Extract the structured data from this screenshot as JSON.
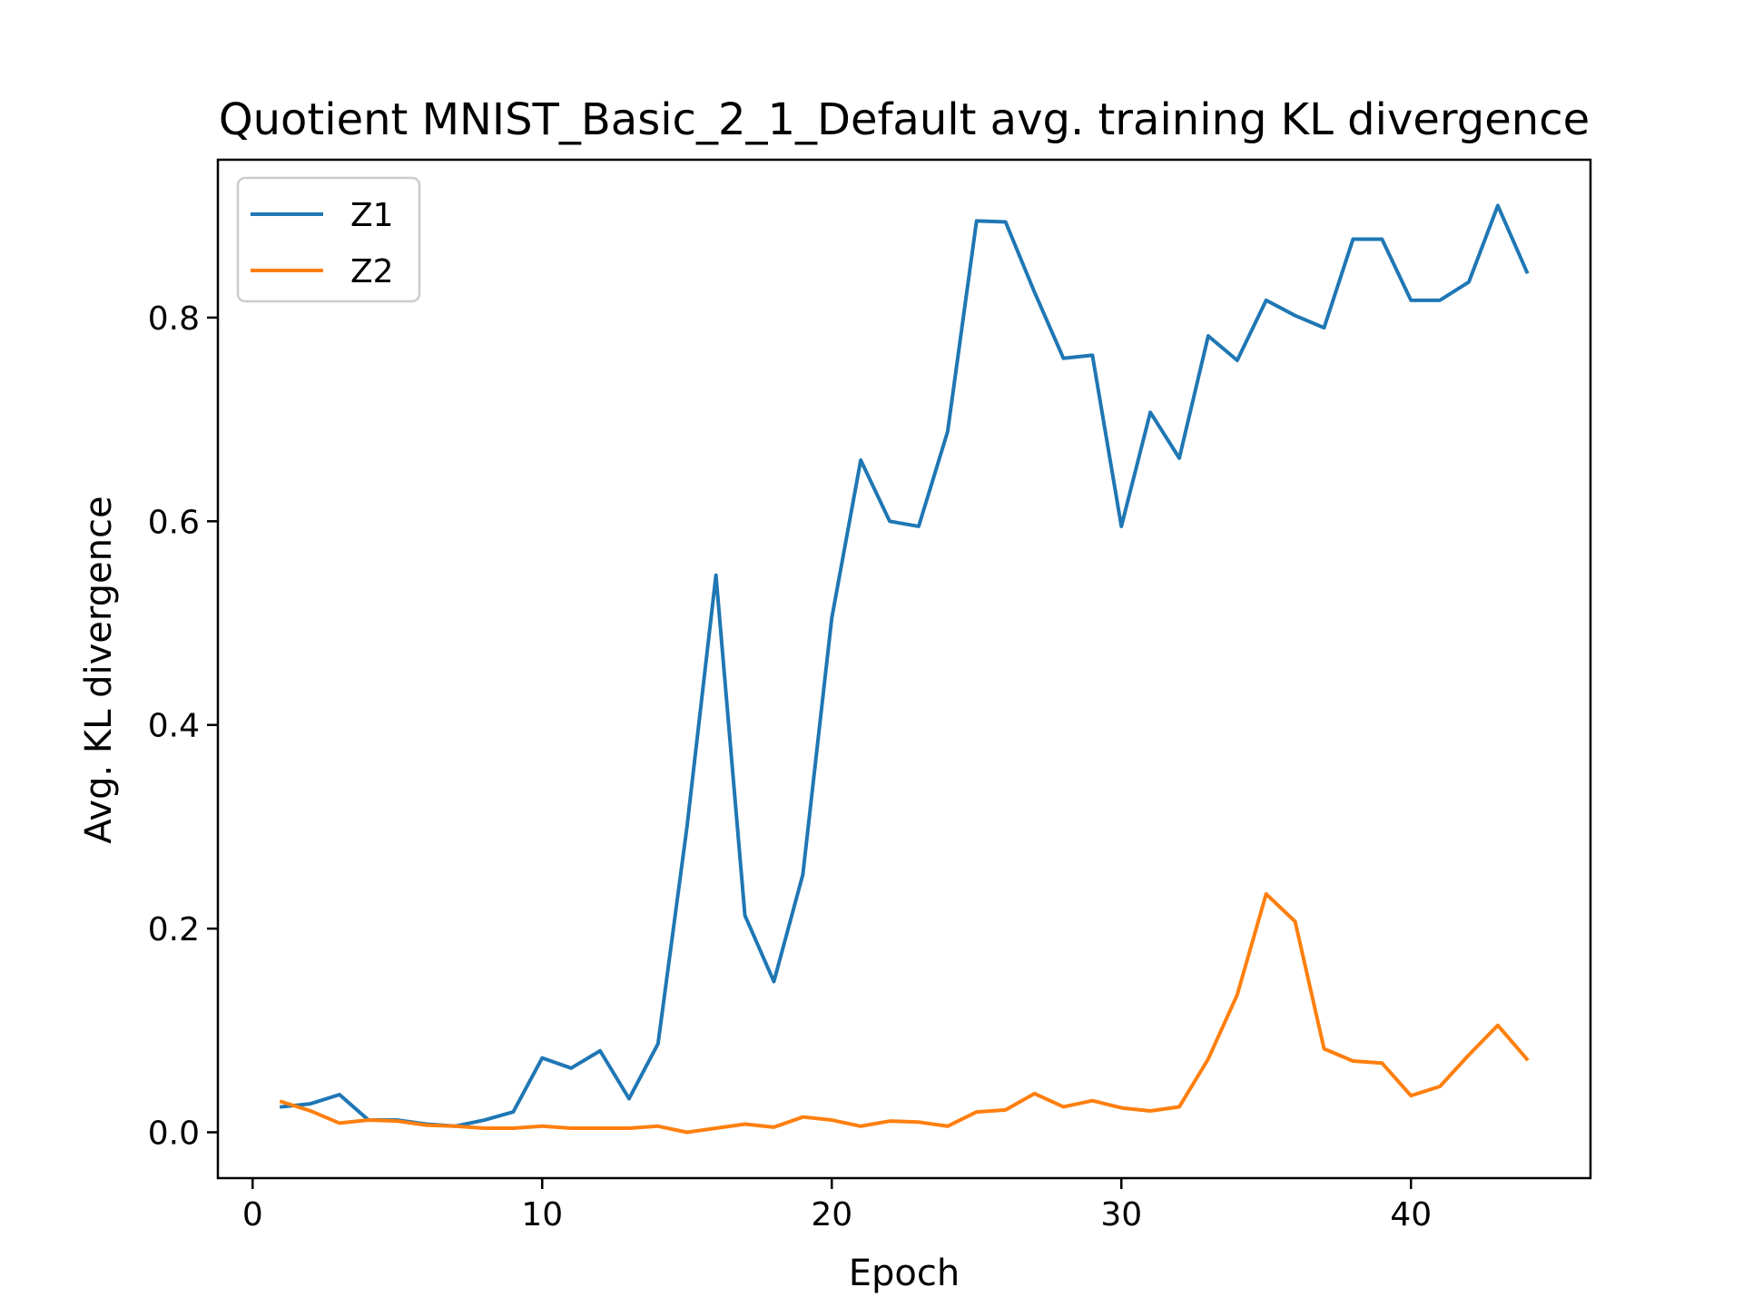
{
  "chart_data": {
    "type": "line",
    "title": "Quotient MNIST_Basic_2_1_Default avg. training KL divergence",
    "xlabel": "Epoch",
    "ylabel": "Avg. KL divergence",
    "xlim": [
      -1.2,
      46.2
    ],
    "ylim": [
      -0.045,
      0.955
    ],
    "xticks": [
      0,
      10,
      20,
      30,
      40
    ],
    "xtick_labels": [
      "0",
      "10",
      "20",
      "30",
      "40"
    ],
    "yticks": [
      0.0,
      0.2,
      0.4,
      0.6,
      0.8
    ],
    "ytick_labels": [
      "0.0",
      "0.2",
      "0.4",
      "0.6",
      "0.8"
    ],
    "grid": false,
    "legend_position": "top-left",
    "x": [
      1,
      2,
      3,
      4,
      5,
      6,
      7,
      8,
      9,
      10,
      11,
      12,
      13,
      14,
      15,
      16,
      17,
      18,
      19,
      20,
      21,
      22,
      23,
      24,
      25,
      26,
      27,
      28,
      29,
      30,
      31,
      32,
      33,
      34,
      35,
      36,
      37,
      38,
      39,
      40,
      41,
      42,
      43,
      44
    ],
    "series": [
      {
        "name": "Z1",
        "color": "#1f77b4",
        "values": [
          0.025,
          0.028,
          0.037,
          0.012,
          0.012,
          0.008,
          0.006,
          0.012,
          0.02,
          0.073,
          0.063,
          0.08,
          0.033,
          0.087,
          0.3,
          0.547,
          0.213,
          0.148,
          0.253,
          0.505,
          0.66,
          0.6,
          0.595,
          0.688,
          0.895,
          0.894,
          0.825,
          0.76,
          0.763,
          0.595,
          0.707,
          0.662,
          0.782,
          0.758,
          0.817,
          0.802,
          0.79,
          0.877,
          0.877,
          0.817,
          0.817,
          0.835,
          0.91,
          0.845
        ]
      },
      {
        "name": "Z2",
        "color": "#ff7f0e",
        "values": [
          0.03,
          0.021,
          0.009,
          0.012,
          0.011,
          0.007,
          0.006,
          0.004,
          0.004,
          0.006,
          0.004,
          0.004,
          0.004,
          0.006,
          0.0,
          0.004,
          0.008,
          0.005,
          0.015,
          0.012,
          0.006,
          0.011,
          0.01,
          0.006,
          0.02,
          0.022,
          0.038,
          0.025,
          0.031,
          0.024,
          0.021,
          0.025,
          0.072,
          0.135,
          0.234,
          0.207,
          0.082,
          0.07,
          0.068,
          0.036,
          0.045,
          0.076,
          0.105,
          0.072
        ]
      }
    ]
  }
}
